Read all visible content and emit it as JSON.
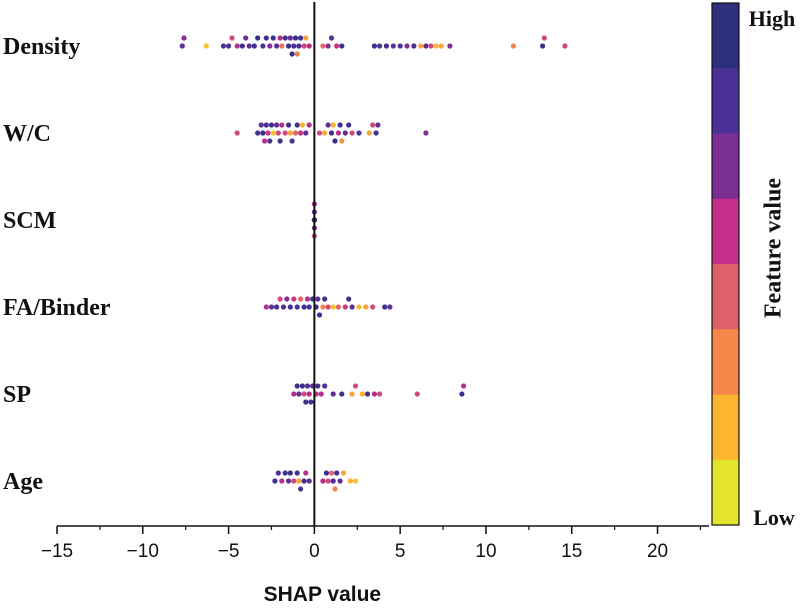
{
  "chart_data": {
    "type": "scatter",
    "subtype": "shap-beeswarm",
    "xlabel": "SHAP value",
    "xlim": [
      -15,
      23
    ],
    "xticks": [
      -15,
      -10,
      -5,
      0,
      5,
      10,
      15,
      20
    ],
    "xtick_labels": [
      "−15",
      "−10",
      "−5",
      "0",
      "5",
      "10",
      "15",
      "20"
    ],
    "features": [
      "Density",
      "W/C",
      "SCM",
      "FA/Binder",
      "SP",
      "Age"
    ],
    "colorbar": {
      "title": "Feature value",
      "high_label": "High",
      "low_label": "Low",
      "colors": [
        "#2e2f7f",
        "#4b3197",
        "#7b2e94",
        "#c42f8a",
        "#e0606a",
        "#f5874a",
        "#fbb531",
        "#e4e42b"
      ]
    },
    "series": [
      {
        "name": "Density",
        "points": [
          [
            -7.7,
            0.8
          ],
          [
            -7.6,
            0.7
          ],
          [
            -6.3,
            0.1
          ],
          [
            -5.3,
            0.9
          ],
          [
            -5.0,
            0.85
          ],
          [
            -4.8,
            0.5
          ],
          [
            -4.5,
            0.6
          ],
          [
            -4.2,
            0.9
          ],
          [
            -4.0,
            0.75
          ],
          [
            -3.8,
            0.8
          ],
          [
            -3.5,
            0.9
          ],
          [
            -3.3,
            0.95
          ],
          [
            -3.0,
            0.85
          ],
          [
            -2.8,
            0.9
          ],
          [
            -2.6,
            0.7
          ],
          [
            -2.4,
            0.95
          ],
          [
            -2.2,
            0.8
          ],
          [
            -2.0,
            0.6
          ],
          [
            -1.9,
            0.35
          ],
          [
            -1.7,
            0.9
          ],
          [
            -1.5,
            0.95
          ],
          [
            -1.4,
            0.8
          ],
          [
            -1.3,
            0.9
          ],
          [
            -1.2,
            0.85
          ],
          [
            -1.1,
            0.95
          ],
          [
            -1.0,
            0.3
          ],
          [
            -0.9,
            0.85
          ],
          [
            -0.8,
            0.9
          ],
          [
            -0.6,
            0.5
          ],
          [
            -0.5,
            0.2
          ],
          [
            -0.3,
            0.6
          ],
          [
            0.5,
            0.4
          ],
          [
            0.8,
            0.7
          ],
          [
            1.0,
            0.85
          ],
          [
            1.3,
            0.55
          ],
          [
            1.6,
            0.9
          ],
          [
            3.5,
            0.9
          ],
          [
            3.8,
            0.85
          ],
          [
            4.2,
            0.9
          ],
          [
            4.6,
            0.8
          ],
          [
            5.0,
            0.85
          ],
          [
            5.4,
            0.7
          ],
          [
            5.8,
            0.9
          ],
          [
            6.2,
            0.2
          ],
          [
            6.5,
            0.8
          ],
          [
            6.8,
            0.5
          ],
          [
            7.1,
            0.15
          ],
          [
            7.4,
            0.2
          ],
          [
            7.9,
            0.7
          ],
          [
            11.6,
            0.3
          ],
          [
            13.3,
            0.95
          ],
          [
            13.4,
            0.5
          ],
          [
            14.6,
            0.5
          ]
        ]
      },
      {
        "name": "W/C",
        "points": [
          [
            -4.5,
            0.5
          ],
          [
            -3.3,
            0.9
          ],
          [
            -3.1,
            0.8
          ],
          [
            -3.0,
            0.95
          ],
          [
            -2.9,
            0.6
          ],
          [
            -2.8,
            0.9
          ],
          [
            -2.7,
            0.55
          ],
          [
            -2.6,
            0.85
          ],
          [
            -2.5,
            0.9
          ],
          [
            -2.4,
            0.1
          ],
          [
            -2.2,
            0.8
          ],
          [
            -2.1,
            0.5
          ],
          [
            -2.0,
            0.9
          ],
          [
            -1.9,
            0.6
          ],
          [
            -1.7,
            0.5
          ],
          [
            -1.5,
            0.9
          ],
          [
            -1.4,
            0.2
          ],
          [
            -1.3,
            0.85
          ],
          [
            -1.1,
            0.4
          ],
          [
            -1.0,
            0.9
          ],
          [
            -0.8,
            0.55
          ],
          [
            -0.7,
            0.15
          ],
          [
            -0.5,
            0.8
          ],
          [
            -0.3,
            0.6
          ],
          [
            0.3,
            0.5
          ],
          [
            0.6,
            0.2
          ],
          [
            0.8,
            0.8
          ],
          [
            1.0,
            0.9
          ],
          [
            1.1,
            0.15
          ],
          [
            1.2,
            0.95
          ],
          [
            1.4,
            0.6
          ],
          [
            1.5,
            0.9
          ],
          [
            1.6,
            0.25
          ],
          [
            1.8,
            0.8
          ],
          [
            2.0,
            0.9
          ],
          [
            2.2,
            0.5
          ],
          [
            2.6,
            0.85
          ],
          [
            3.2,
            0.2
          ],
          [
            3.4,
            0.5
          ],
          [
            3.6,
            0.9
          ],
          [
            3.7,
            0.8
          ],
          [
            6.5,
            0.7
          ]
        ]
      },
      {
        "name": "SCM",
        "points": [
          [
            0,
            0.9
          ],
          [
            0,
            0.8
          ],
          [
            0,
            0.7
          ],
          [
            0,
            0.6
          ],
          [
            0,
            0.5
          ],
          [
            0,
            0.4
          ],
          [
            0,
            0.3
          ],
          [
            0,
            0.2
          ],
          [
            0,
            0.1
          ],
          [
            0,
            0.15
          ],
          [
            0,
            0.85
          ],
          [
            0,
            0.95
          ]
        ]
      },
      {
        "name": "FA/Binder",
        "points": [
          [
            -2.8,
            0.6
          ],
          [
            -2.5,
            0.8
          ],
          [
            -2.2,
            0.9
          ],
          [
            -2.0,
            0.5
          ],
          [
            -1.8,
            0.85
          ],
          [
            -1.6,
            0.7
          ],
          [
            -1.4,
            0.9
          ],
          [
            -1.2,
            0.55
          ],
          [
            -1.0,
            0.85
          ],
          [
            -0.8,
            0.4
          ],
          [
            -0.6,
            0.9
          ],
          [
            -0.4,
            0.6
          ],
          [
            -0.3,
            0.85
          ],
          [
            -0.1,
            0.9
          ],
          [
            0.1,
            0.95
          ],
          [
            0.2,
            0.8
          ],
          [
            0.3,
            0.9
          ],
          [
            0.5,
            0.3
          ],
          [
            0.6,
            0.9
          ],
          [
            0.8,
            0.5
          ],
          [
            1.1,
            0.1
          ],
          [
            1.4,
            0.4
          ],
          [
            1.8,
            0.55
          ],
          [
            2.0,
            0.9
          ],
          [
            2.2,
            0.8
          ],
          [
            2.6,
            0.15
          ],
          [
            3.0,
            0.2
          ],
          [
            3.4,
            0.5
          ],
          [
            4.1,
            0.9
          ],
          [
            4.4,
            0.8
          ]
        ]
      },
      {
        "name": "SP",
        "points": [
          [
            -1.2,
            0.6
          ],
          [
            -1.0,
            0.9
          ],
          [
            -0.9,
            0.8
          ],
          [
            -0.7,
            0.95
          ],
          [
            -0.6,
            0.5
          ],
          [
            -0.5,
            0.9
          ],
          [
            -0.4,
            0.85
          ],
          [
            -0.3,
            0.6
          ],
          [
            -0.2,
            0.9
          ],
          [
            -0.1,
            0.8
          ],
          [
            0.1,
            0.55
          ],
          [
            0.2,
            0.9
          ],
          [
            0.4,
            0.6
          ],
          [
            0.6,
            0.85
          ],
          [
            1.1,
            0.8
          ],
          [
            1.6,
            0.9
          ],
          [
            2.2,
            0.2
          ],
          [
            2.4,
            0.5
          ],
          [
            2.8,
            0.15
          ],
          [
            3.1,
            0.9
          ],
          [
            3.5,
            0.6
          ],
          [
            3.8,
            0.5
          ],
          [
            6.0,
            0.5
          ],
          [
            8.6,
            0.9
          ],
          [
            8.7,
            0.6
          ]
        ]
      },
      {
        "name": "Age",
        "points": [
          [
            -2.3,
            0.9
          ],
          [
            -2.1,
            0.85
          ],
          [
            -1.9,
            0.6
          ],
          [
            -1.7,
            0.9
          ],
          [
            -1.5,
            0.8
          ],
          [
            -1.4,
            0.95
          ],
          [
            -1.2,
            0.5
          ],
          [
            -1.0,
            0.9
          ],
          [
            -0.9,
            0.2
          ],
          [
            -0.8,
            0.85
          ],
          [
            -0.6,
            0.9
          ],
          [
            -0.5,
            0.6
          ],
          [
            -0.3,
            0.8
          ],
          [
            0.5,
            0.6
          ],
          [
            0.7,
            0.9
          ],
          [
            0.8,
            0.5
          ],
          [
            1.0,
            0.4
          ],
          [
            1.1,
            0.85
          ],
          [
            1.2,
            0.3
          ],
          [
            1.3,
            0.9
          ],
          [
            1.5,
            0.8
          ],
          [
            1.7,
            0.2
          ],
          [
            2.1,
            0.15
          ],
          [
            2.4,
            0.1
          ]
        ]
      }
    ]
  }
}
